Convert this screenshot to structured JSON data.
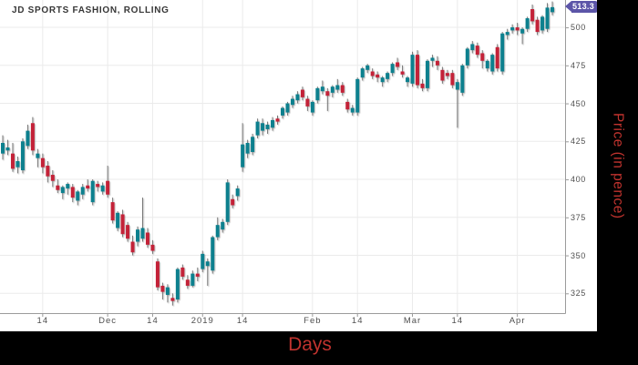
{
  "chart": {
    "title": "JD SPORTS FASHION, ROLLING",
    "type": "candlestick",
    "last_price_label": "513.3",
    "colors": {
      "up": "#11808e",
      "down": "#c32339",
      "wick": "#787878",
      "grid": "#ebebeb",
      "axis": "#9b9b9b",
      "tick_text": "#4f4f4f",
      "title_text": "#373737",
      "badge_bg": "#5c55a8",
      "badge_text": "#ffffff",
      "axis_title_text": "#c0332e",
      "outer_bg": "#000000",
      "panel_bg": "#ffffff"
    }
  },
  "x_axis": {
    "title": "Days",
    "ticks": [
      {
        "label": "14",
        "date": "2018-11-14"
      },
      {
        "label": "Dec",
        "date": "2018-12-03"
      },
      {
        "label": "14",
        "date": "2018-12-14"
      },
      {
        "label": "2019",
        "date": "2019-01-02"
      },
      {
        "label": "14",
        "date": "2019-01-14"
      },
      {
        "label": "Feb",
        "date": "2019-02-01"
      },
      {
        "label": "14",
        "date": "2019-02-14"
      },
      {
        "label": "Mar",
        "date": "2019-03-01"
      },
      {
        "label": "14",
        "date": "2019-03-14"
      },
      {
        "label": "Apr",
        "date": "2019-04-01"
      }
    ]
  },
  "y_axis": {
    "title": "Price (in pence)",
    "ticks": [
      325,
      350,
      375,
      400,
      425,
      450,
      475,
      500
    ]
  },
  "chart_data": {
    "type": "candlestick",
    "series_name": "JD Sports Fashion",
    "unit": "pence",
    "last_close": 513.3,
    "y_domain": [
      312,
      518
    ],
    "columns": [
      "date",
      "open",
      "high",
      "low",
      "close"
    ],
    "candles": [
      [
        "2018-11-02",
        417,
        429,
        413,
        424
      ],
      [
        "2018-11-05",
        419,
        426,
        416,
        421
      ],
      [
        "2018-11-06",
        417,
        424,
        405,
        407
      ],
      [
        "2018-11-07",
        408,
        415,
        404,
        412
      ],
      [
        "2018-11-08",
        406,
        427,
        404,
        425
      ],
      [
        "2018-11-09",
        422,
        436,
        420,
        432
      ],
      [
        "2018-11-12",
        437,
        441,
        416,
        419
      ],
      [
        "2018-11-13",
        414,
        420,
        408,
        417
      ],
      [
        "2018-11-14",
        414,
        417,
        404,
        408
      ],
      [
        "2018-11-15",
        409,
        412,
        398,
        402
      ],
      [
        "2018-11-16",
        403,
        406,
        395,
        399
      ],
      [
        "2018-11-19",
        396,
        400,
        391,
        393
      ],
      [
        "2018-11-20",
        391,
        396,
        387,
        395
      ],
      [
        "2018-11-21",
        394,
        398,
        390,
        397
      ],
      [
        "2018-11-22",
        395,
        397,
        385,
        388
      ],
      [
        "2018-11-23",
        386,
        393,
        383,
        392
      ],
      [
        "2018-11-26",
        390,
        397,
        387,
        395
      ],
      [
        "2018-11-27",
        396,
        400,
        392,
        394
      ],
      [
        "2018-11-28",
        385,
        400,
        383,
        399
      ],
      [
        "2018-11-29",
        397,
        399,
        392,
        395
      ],
      [
        "2018-11-30",
        392,
        398,
        390,
        396
      ],
      [
        "2018-12-03",
        399,
        409,
        388,
        390
      ],
      [
        "2018-12-04",
        385,
        388,
        371,
        373
      ],
      [
        "2018-12-05",
        368,
        379,
        366,
        378
      ],
      [
        "2018-12-06",
        377,
        380,
        362,
        364
      ],
      [
        "2018-12-07",
        370,
        372,
        359,
        361
      ],
      [
        "2018-12-10",
        359,
        363,
        350,
        352
      ],
      [
        "2018-12-11",
        359,
        369,
        356,
        367
      ],
      [
        "2018-12-12",
        361,
        388,
        359,
        368
      ],
      [
        "2018-12-13",
        365,
        368,
        355,
        357
      ],
      [
        "2018-12-14",
        357,
        360,
        351,
        353
      ],
      [
        "2018-12-17",
        346,
        348,
        327,
        329
      ],
      [
        "2018-12-18",
        330,
        332,
        321,
        326
      ],
      [
        "2018-12-19",
        324,
        331,
        319,
        329
      ],
      [
        "2018-12-20",
        322,
        325,
        317,
        320
      ],
      [
        "2018-12-21",
        321,
        342,
        319,
        341
      ],
      [
        "2018-12-24",
        342,
        344,
        334,
        336
      ],
      [
        "2018-12-27",
        334,
        337,
        328,
        330
      ],
      [
        "2018-12-28",
        330,
        340,
        329,
        338
      ],
      [
        "2018-12-31",
        338,
        342,
        333,
        336
      ],
      [
        "2019-01-02",
        341,
        353,
        339,
        351
      ],
      [
        "2019-01-03",
        343,
        348,
        330,
        346
      ],
      [
        "2019-01-04",
        340,
        363,
        338,
        362
      ],
      [
        "2019-01-07",
        362,
        375,
        360,
        370
      ],
      [
        "2019-01-08",
        367,
        374,
        365,
        372
      ],
      [
        "2019-01-09",
        372,
        400,
        370,
        398
      ],
      [
        "2019-01-10",
        387,
        390,
        381,
        383
      ],
      [
        "2019-01-11",
        389,
        396,
        386,
        394
      ],
      [
        "2019-01-14",
        408,
        437,
        405,
        423
      ],
      [
        "2019-01-15",
        417,
        426,
        414,
        424
      ],
      [
        "2019-01-16",
        418,
        430,
        416,
        428
      ],
      [
        "2019-01-17",
        429,
        440,
        427,
        438
      ],
      [
        "2019-01-18",
        432,
        440,
        429,
        437
      ],
      [
        "2019-01-21",
        433,
        438,
        430,
        436
      ],
      [
        "2019-01-22",
        434,
        441,
        432,
        439
      ],
      [
        "2019-01-23",
        440,
        442,
        436,
        438
      ],
      [
        "2019-01-24",
        442,
        448,
        440,
        447
      ],
      [
        "2019-01-25",
        444,
        451,
        442,
        450
      ],
      [
        "2019-01-28",
        449,
        455,
        447,
        453
      ],
      [
        "2019-01-29",
        452,
        458,
        450,
        456
      ],
      [
        "2019-01-30",
        459,
        461,
        452,
        454
      ],
      [
        "2019-01-31",
        453,
        455,
        445,
        448
      ],
      [
        "2019-02-01",
        444,
        452,
        442,
        451
      ],
      [
        "2019-02-04",
        452,
        461,
        450,
        460
      ],
      [
        "2019-02-05",
        458,
        465,
        456,
        461
      ],
      [
        "2019-02-06",
        458,
        460,
        445,
        455
      ],
      [
        "2019-02-07",
        457,
        462,
        454,
        461
      ],
      [
        "2019-02-08",
        459,
        466,
        457,
        462
      ],
      [
        "2019-02-11",
        462,
        464,
        455,
        457
      ],
      [
        "2019-02-12",
        451,
        453,
        444,
        446
      ],
      [
        "2019-02-13",
        444,
        449,
        442,
        447
      ],
      [
        "2019-02-14",
        444,
        467,
        442,
        466
      ],
      [
        "2019-02-15",
        467,
        474,
        465,
        473
      ],
      [
        "2019-02-18",
        472,
        476,
        470,
        475
      ],
      [
        "2019-02-19",
        471,
        473,
        466,
        468
      ],
      [
        "2019-02-20",
        469,
        471,
        464,
        467
      ],
      [
        "2019-02-21",
        464,
        468,
        461,
        467
      ],
      [
        "2019-02-22",
        466,
        471,
        464,
        470
      ],
      [
        "2019-02-25",
        470,
        477,
        468,
        476
      ],
      [
        "2019-02-26",
        477,
        480,
        472,
        474
      ],
      [
        "2019-02-27",
        471,
        475,
        467,
        469
      ],
      [
        "2019-02-28",
        464,
        468,
        461,
        467
      ],
      [
        "2019-03-01",
        463,
        484,
        461,
        482
      ],
      [
        "2019-03-04",
        482,
        485,
        460,
        462
      ],
      [
        "2019-03-05",
        463,
        466,
        458,
        460
      ],
      [
        "2019-03-06",
        460,
        479,
        458,
        478
      ],
      [
        "2019-03-07",
        478,
        482,
        474,
        480
      ],
      [
        "2019-03-08",
        478,
        481,
        472,
        475
      ],
      [
        "2019-03-11",
        472,
        474,
        463,
        465
      ],
      [
        "2019-03-12",
        470,
        472,
        466,
        468
      ],
      [
        "2019-03-13",
        470,
        472,
        460,
        462
      ],
      [
        "2019-03-14",
        459,
        466,
        434,
        464
      ],
      [
        "2019-03-15",
        457,
        476,
        455,
        475
      ],
      [
        "2019-03-18",
        475,
        487,
        473,
        486
      ],
      [
        "2019-03-19",
        485,
        491,
        483,
        489
      ],
      [
        "2019-03-20",
        488,
        490,
        480,
        482
      ],
      [
        "2019-03-21",
        483,
        485,
        473,
        478
      ],
      [
        "2019-03-22",
        473,
        479,
        471,
        478
      ],
      [
        "2019-03-25",
        471,
        483,
        469,
        482
      ],
      [
        "2019-03-26",
        487,
        489,
        471,
        473
      ],
      [
        "2019-03-27",
        471,
        497,
        469,
        496
      ],
      [
        "2019-03-28",
        495,
        499,
        492,
        497
      ],
      [
        "2019-03-29",
        498,
        502,
        496,
        500
      ],
      [
        "2019-04-01",
        500,
        503,
        495,
        498
      ],
      [
        "2019-04-02",
        496,
        500,
        489,
        499
      ],
      [
        "2019-04-03",
        499,
        507,
        497,
        506
      ],
      [
        "2019-04-04",
        512,
        515,
        502,
        504
      ],
      [
        "2019-04-05",
        505,
        507,
        495,
        497
      ],
      [
        "2019-04-08",
        498,
        508,
        496,
        507
      ],
      [
        "2019-04-09",
        499,
        516,
        497,
        513
      ],
      [
        "2019-04-10",
        510,
        517,
        508,
        513.3
      ]
    ]
  }
}
